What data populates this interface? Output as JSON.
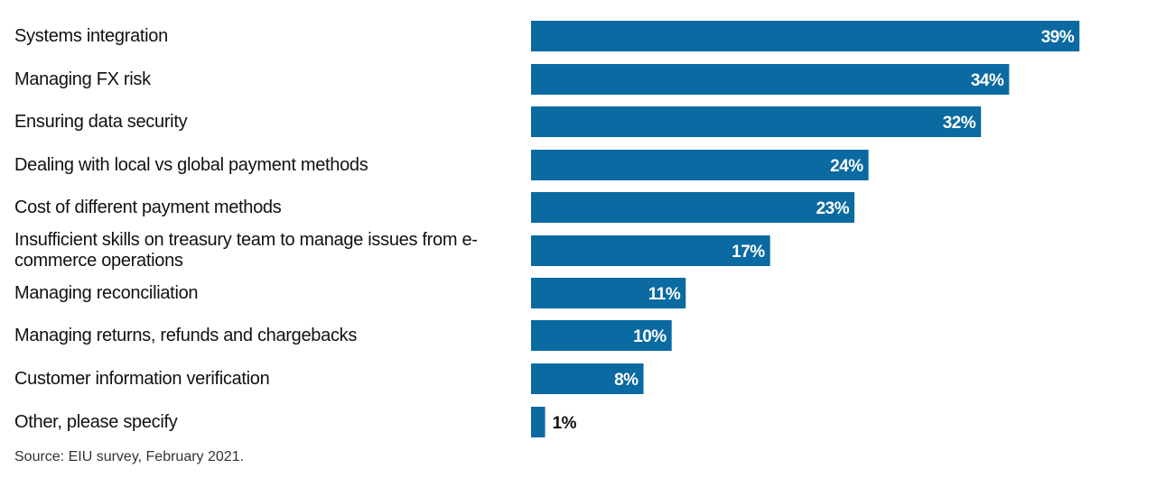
{
  "chart_data": {
    "type": "bar",
    "orientation": "horizontal",
    "categories": [
      "Systems integration",
      "Managing FX risk",
      "Ensuring data security",
      "Dealing with local vs global payment methods",
      "Cost of different payment methods",
      "Insufficient skills on  treasury team to manage issues from e-commerce operations",
      "Managing reconciliation",
      "Managing returns, refunds and chargebacks",
      "Customer information verification",
      "Other, please specify"
    ],
    "values": [
      39,
      34,
      32,
      24,
      23,
      17,
      11,
      10,
      8,
      1
    ],
    "data_labels": [
      "39%",
      "34%",
      "32%",
      "24%",
      "23%",
      "17%",
      "11%",
      "10%",
      "8%",
      "1%"
    ],
    "unit": "%",
    "bar_color": "#0a6aa1",
    "grid": false,
    "legend": "none"
  },
  "source": "Source: EIU survey, February 2021."
}
